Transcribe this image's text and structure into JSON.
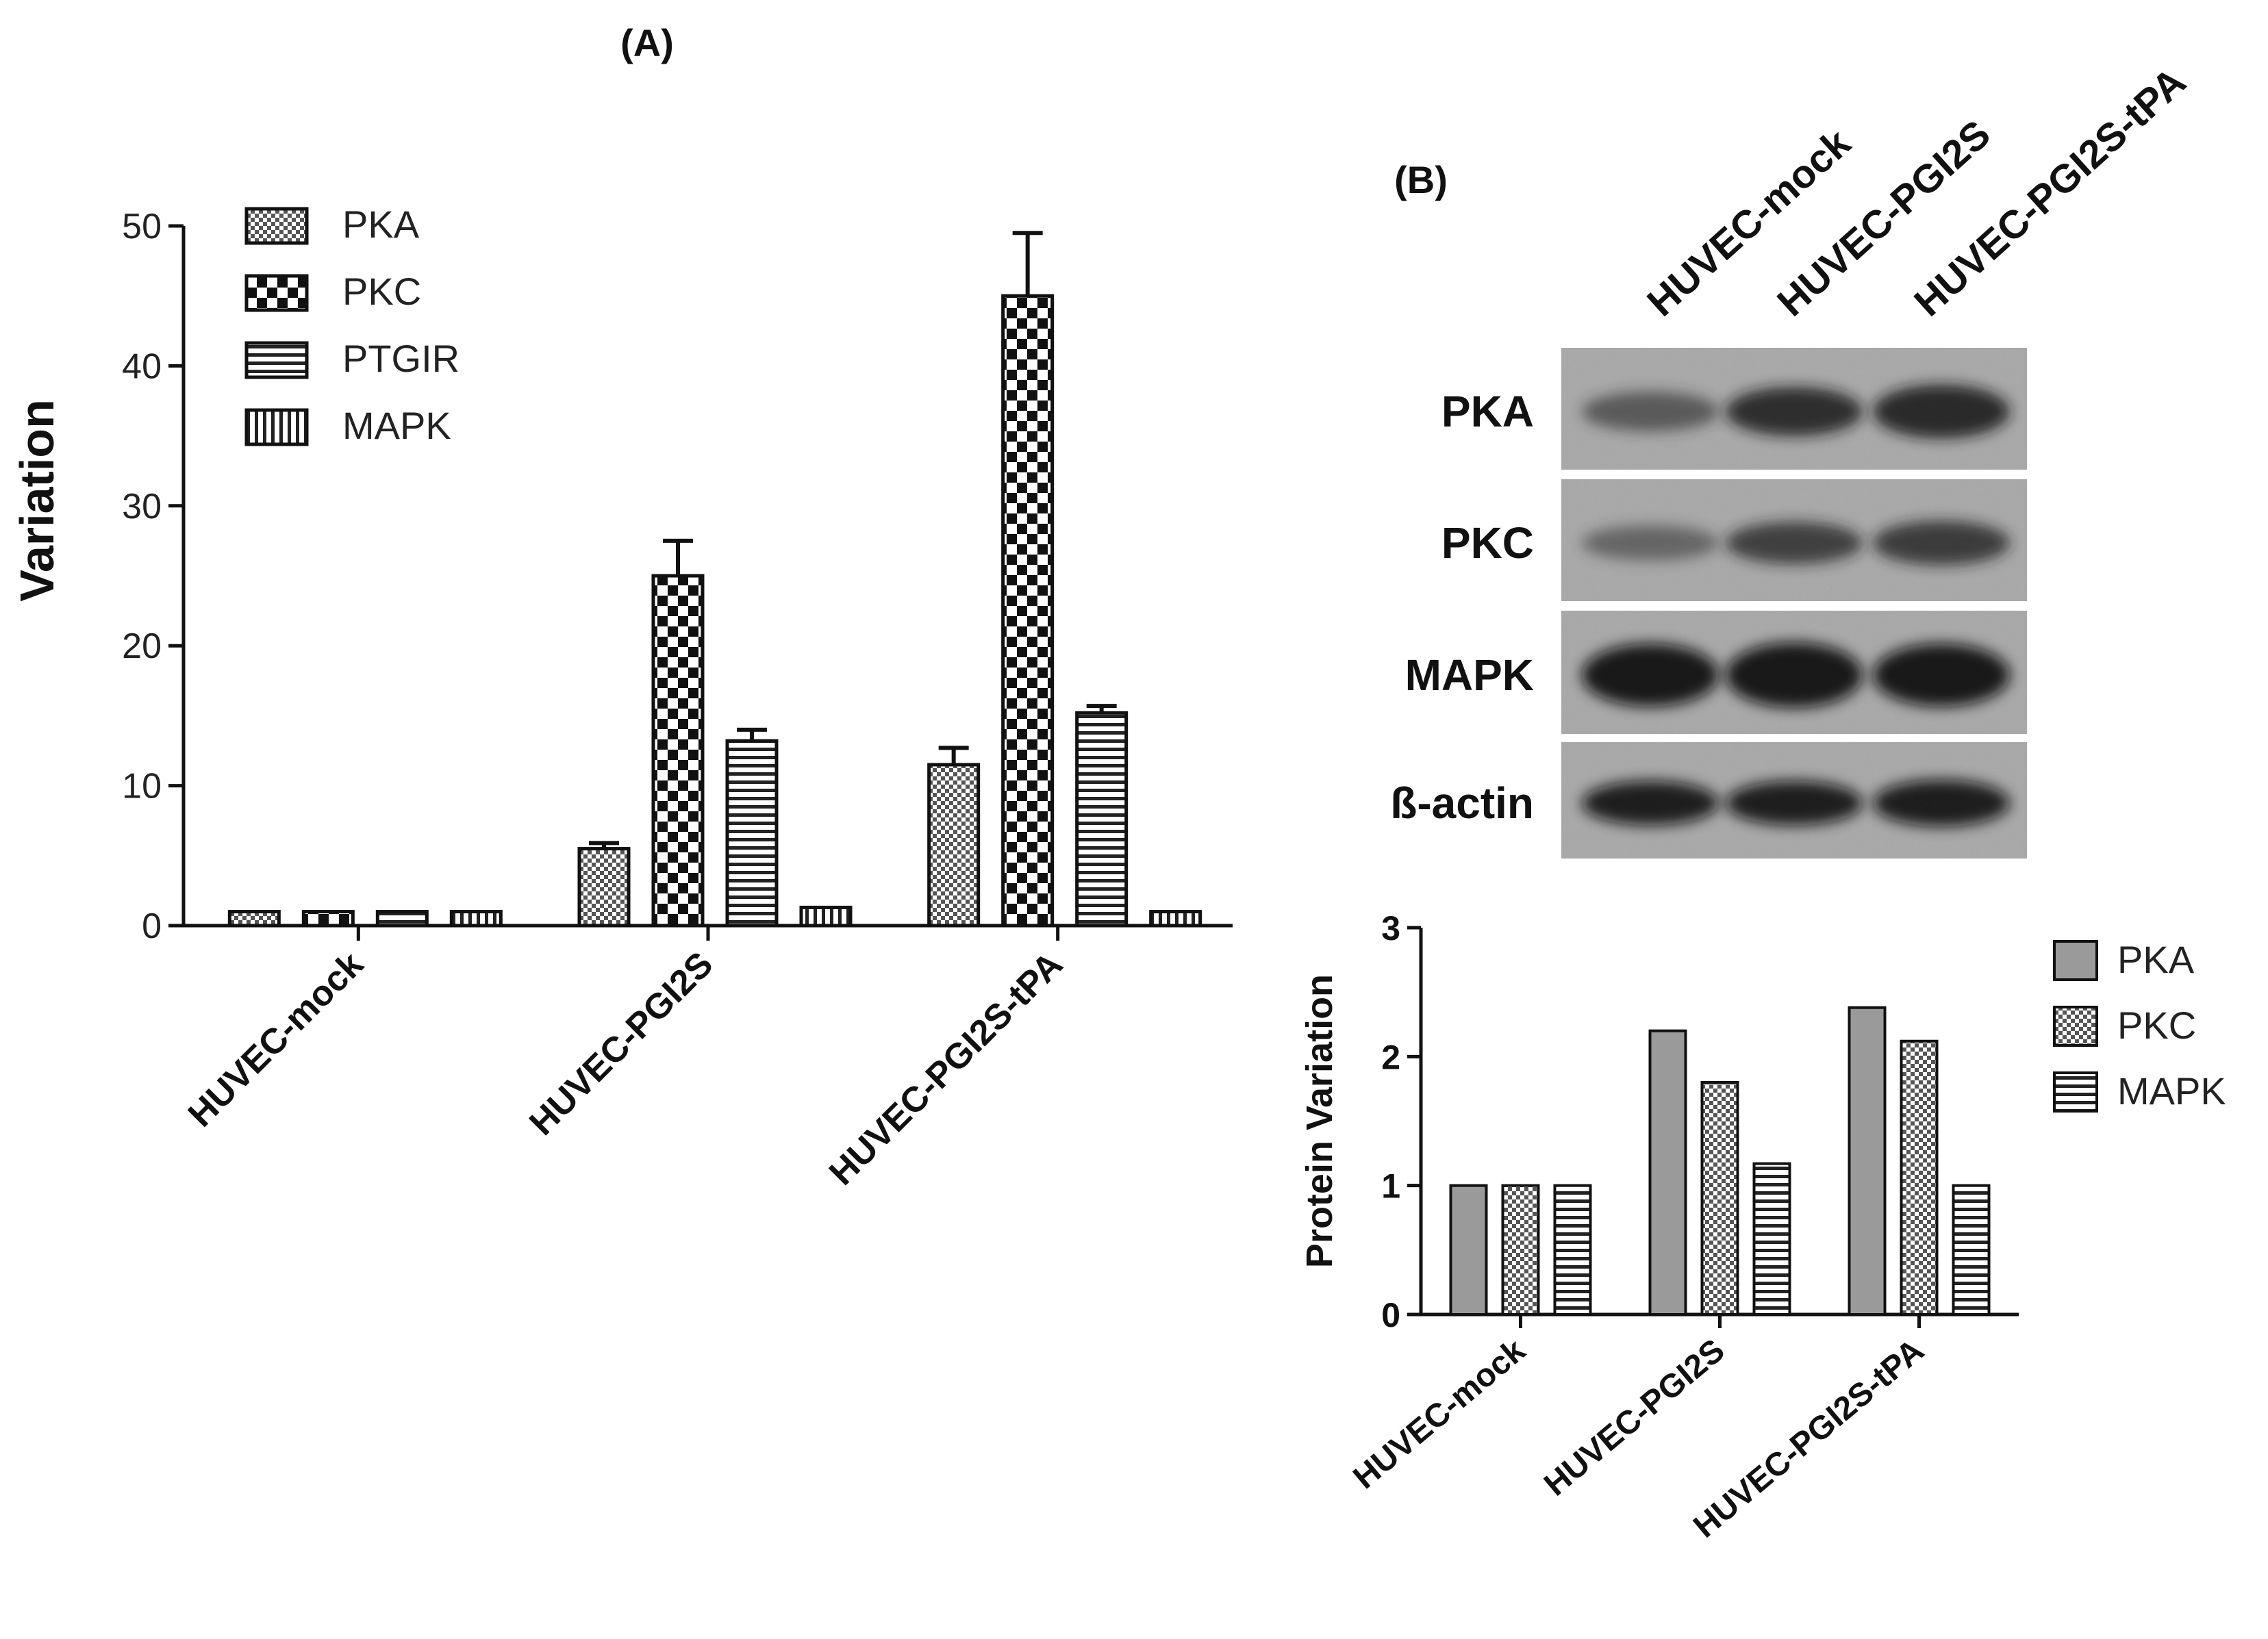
{
  "panel_a": {
    "label": "(A)",
    "chart_data": {
      "type": "bar",
      "categories": [
        "HUVEC-mock",
        "HUVEC-PGI2S",
        "HUVEC-PGI2S-tPA"
      ],
      "ylabel": "Variation",
      "xlabel": "",
      "ylim": [
        0,
        50
      ],
      "yticks": [
        0,
        10,
        20,
        30,
        40,
        50
      ],
      "legend": "top-left",
      "series": [
        {
          "name": "PKA",
          "pattern": "fine-check",
          "values": [
            1,
            5.5,
            11.5
          ],
          "errors": [
            0,
            0.4,
            1.2
          ]
        },
        {
          "name": "PKC",
          "pattern": "checker",
          "values": [
            1,
            25,
            45
          ],
          "errors": [
            0,
            2.5,
            4.5
          ]
        },
        {
          "name": "PTGIR",
          "pattern": "horizontal",
          "values": [
            1,
            13.2,
            15.2
          ],
          "errors": [
            0,
            0.8,
            0.5
          ]
        },
        {
          "name": "MAPK",
          "pattern": "vertical",
          "values": [
            1,
            1.3,
            1
          ],
          "errors": [
            0,
            0,
            0
          ]
        }
      ]
    }
  },
  "panel_b": {
    "label": "(B)",
    "lanes": [
      "HUVEC-mock",
      "HUVEC-PGI2S",
      "HUVEC-PGI2S-tPA"
    ],
    "blots": [
      {
        "name": "PKA",
        "intensity": [
          0.45,
          0.8,
          0.85
        ],
        "thickness": [
          0.5,
          0.7,
          0.8
        ]
      },
      {
        "name": "PKC",
        "intensity": [
          0.35,
          0.65,
          0.7
        ],
        "thickness": [
          0.4,
          0.55,
          0.6
        ]
      },
      {
        "name": "MAPK",
        "intensity": [
          0.95,
          0.95,
          0.95
        ],
        "thickness": [
          1.0,
          1.05,
          1.0
        ]
      },
      {
        "name": "ß-actin",
        "intensity": [
          0.9,
          0.9,
          0.9
        ],
        "thickness": [
          0.6,
          0.6,
          0.65
        ]
      }
    ],
    "chart_data": {
      "type": "bar",
      "categories": [
        "HUVEC-mock",
        "HUVEC-PGI2S",
        "HUVEC-PGI2S-tPA"
      ],
      "ylabel": "Protein Variation",
      "xlabel": "",
      "ylim": [
        0,
        3
      ],
      "yticks": [
        0,
        1,
        2,
        3
      ],
      "legend": "right",
      "series": [
        {
          "name": "PKA",
          "pattern": "solid-gray",
          "values": [
            1,
            2.2,
            2.38
          ]
        },
        {
          "name": "PKC",
          "pattern": "fine-check",
          "values": [
            1,
            1.8,
            2.12
          ]
        },
        {
          "name": "MAPK",
          "pattern": "horizontal",
          "values": [
            1,
            1.17,
            1
          ]
        }
      ]
    }
  }
}
